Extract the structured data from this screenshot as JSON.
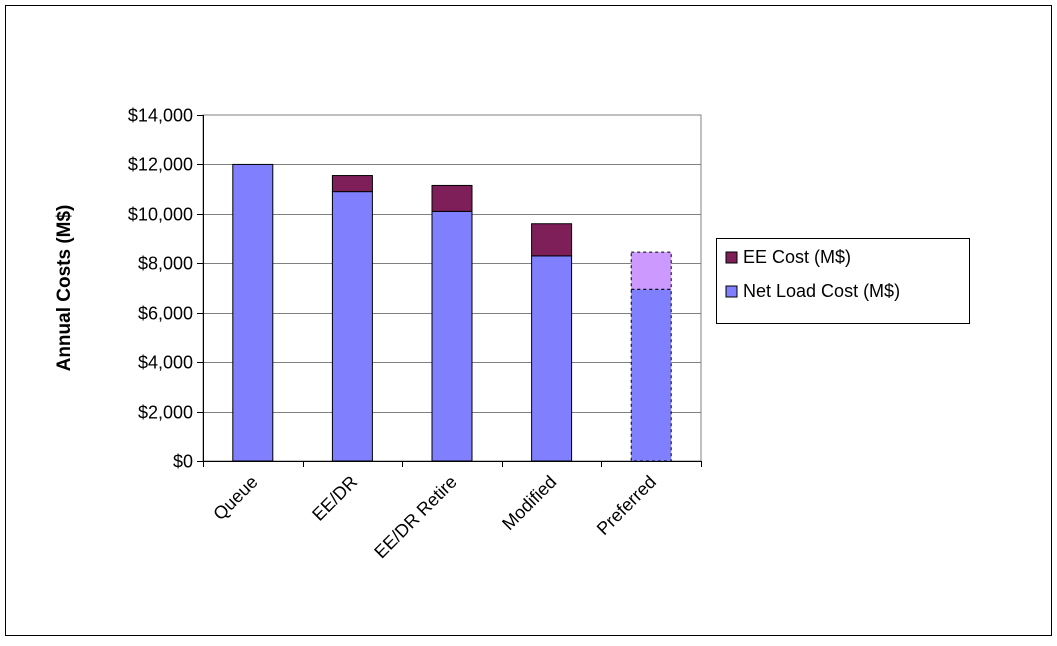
{
  "chart_data": {
    "type": "bar",
    "stacked": true,
    "title": "",
    "xlabel": "",
    "ylabel": "Annual Costs (M$)",
    "ylim": [
      0,
      14000
    ],
    "y_ticks": [
      0,
      2000,
      4000,
      6000,
      8000,
      10000,
      12000,
      14000
    ],
    "y_tick_labels": [
      "$0",
      "$2,000",
      "$4,000",
      "$6,000",
      "$8,000",
      "$10,000",
      "$12,000",
      "$14,000"
    ],
    "categories": [
      "Queue",
      "EE/DR",
      "EE/DR Retire",
      "Modified",
      "Preferred"
    ],
    "series": [
      {
        "name": "Net Load Cost (M$)",
        "values": [
          12000,
          10900,
          10100,
          8300,
          6950
        ],
        "color": "#8080ff"
      },
      {
        "name": "EE Cost (M$)",
        "values": [
          0,
          650,
          1050,
          1300,
          1500
        ],
        "color": "#7f1f5a"
      }
    ],
    "highlighted_category": {
      "name": "Preferred",
      "style": "dashed outline",
      "ee_color": "#cc99ff"
    },
    "grid": true,
    "legend_position": "right",
    "legend_order": [
      "EE Cost (M$)",
      "Net Load Cost (M$)"
    ]
  }
}
